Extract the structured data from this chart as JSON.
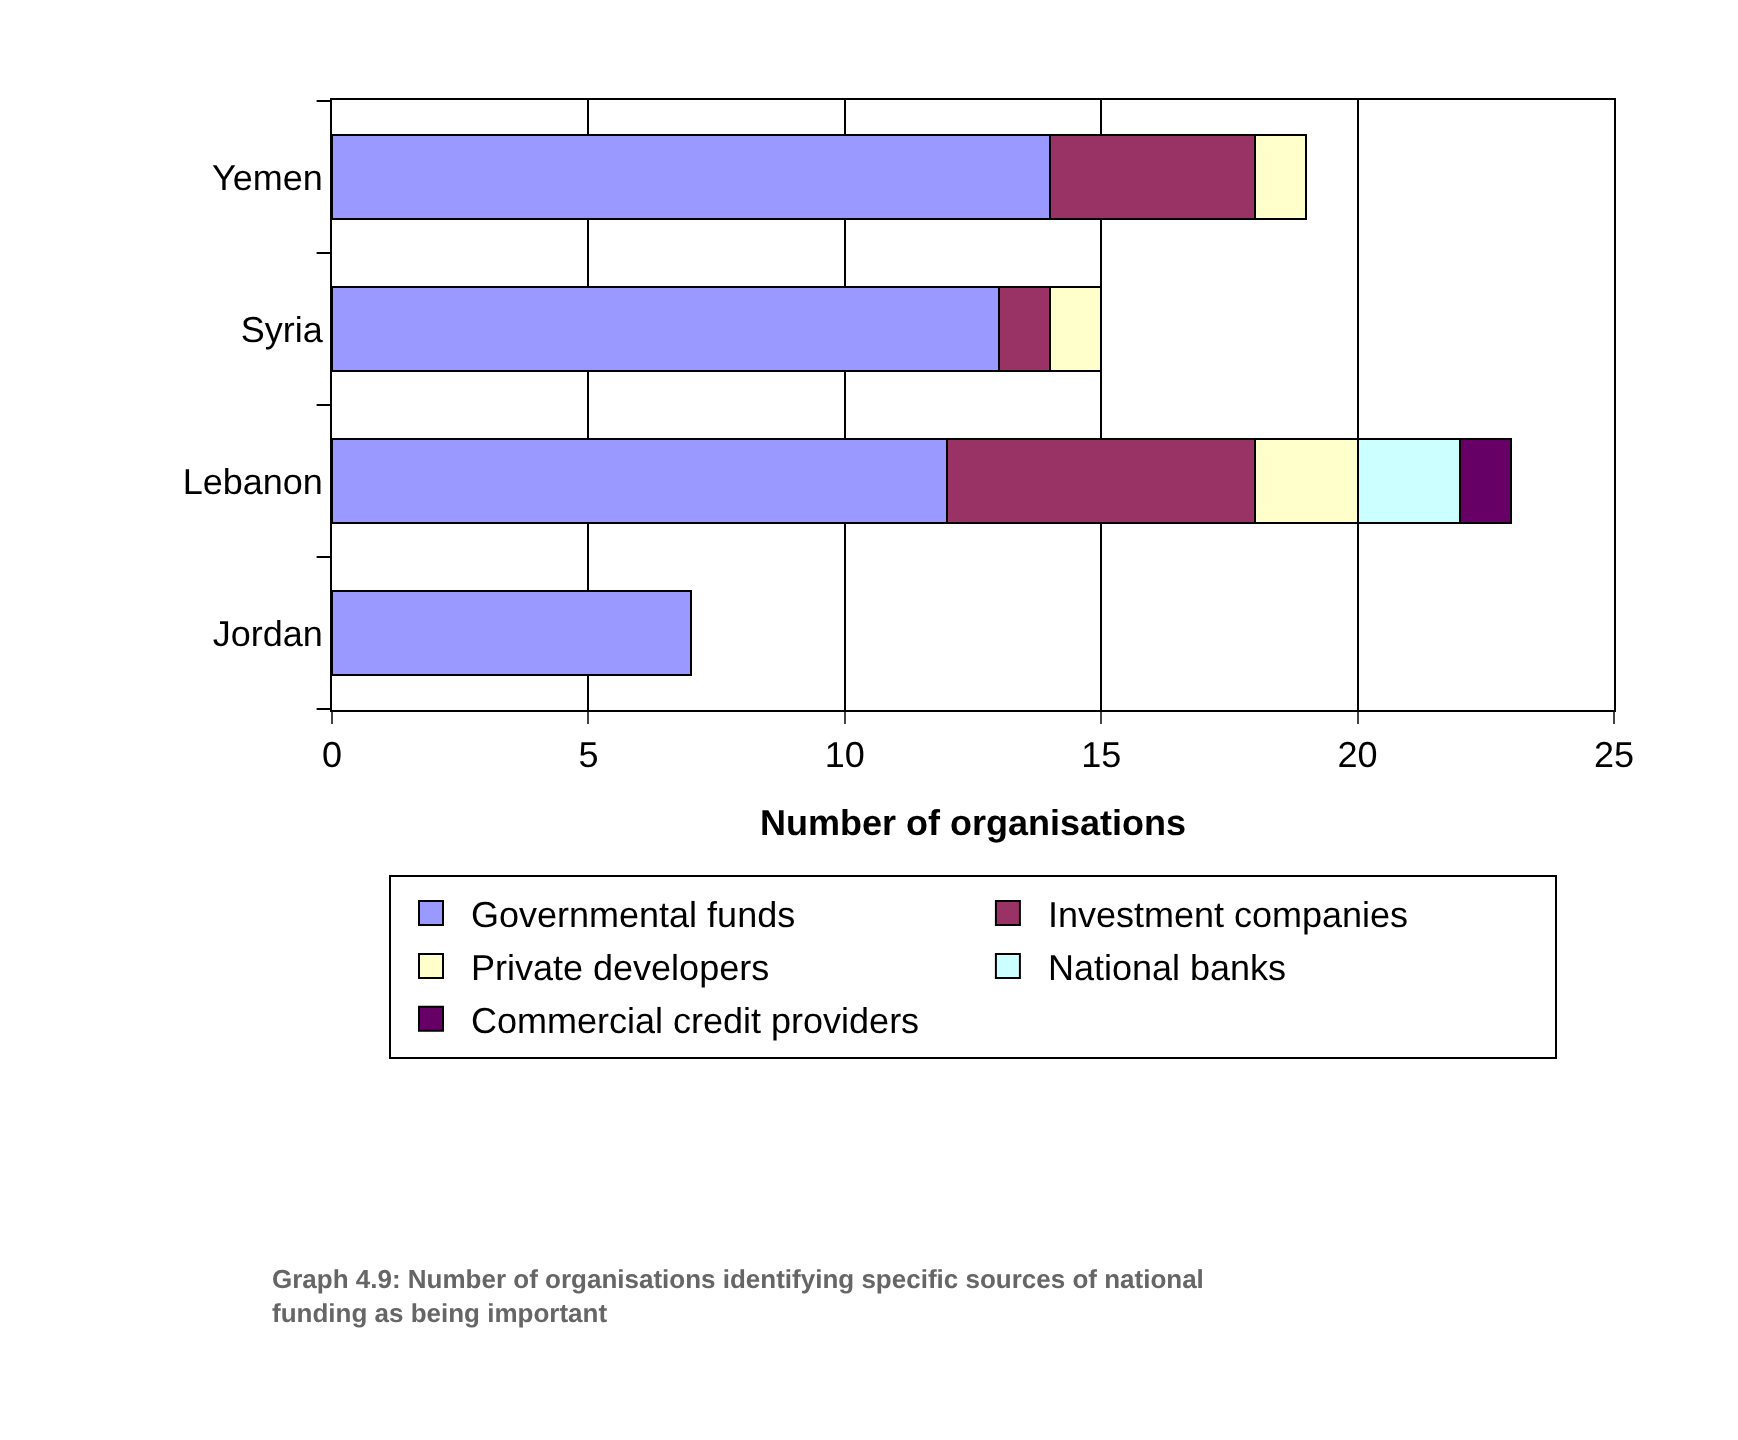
{
  "chart_data": {
    "type": "bar",
    "orientation": "horizontal",
    "stacked": true,
    "xlabel": "Number of organisations",
    "categories": [
      "Yemen",
      "Syria",
      "Lebanon",
      "Jordan"
    ],
    "series": [
      {
        "name": "Governmental funds",
        "color": "#9999ff",
        "values": [
          14,
          13,
          12,
          7
        ]
      },
      {
        "name": "Investment companies",
        "color": "#993366",
        "values": [
          4,
          1,
          6,
          null
        ]
      },
      {
        "name": "Private developers",
        "color": "#ffffcc",
        "values": [
          1,
          1,
          2,
          null
        ]
      },
      {
        "name": "National banks",
        "color": "#ccffff",
        "values": [
          null,
          null,
          2,
          null
        ]
      },
      {
        "name": "Commercial credit providers",
        "color": "#660066",
        "values": [
          null,
          null,
          1,
          null
        ]
      }
    ],
    "xlim": [
      0,
      25
    ],
    "xticks": [
      0,
      5,
      10,
      15,
      20,
      25
    ],
    "grid": "x",
    "legend": "bottom",
    "annotations": [
      "Graph 4.9: Number of organisations identifying specific sources of national funding as being important"
    ]
  }
}
